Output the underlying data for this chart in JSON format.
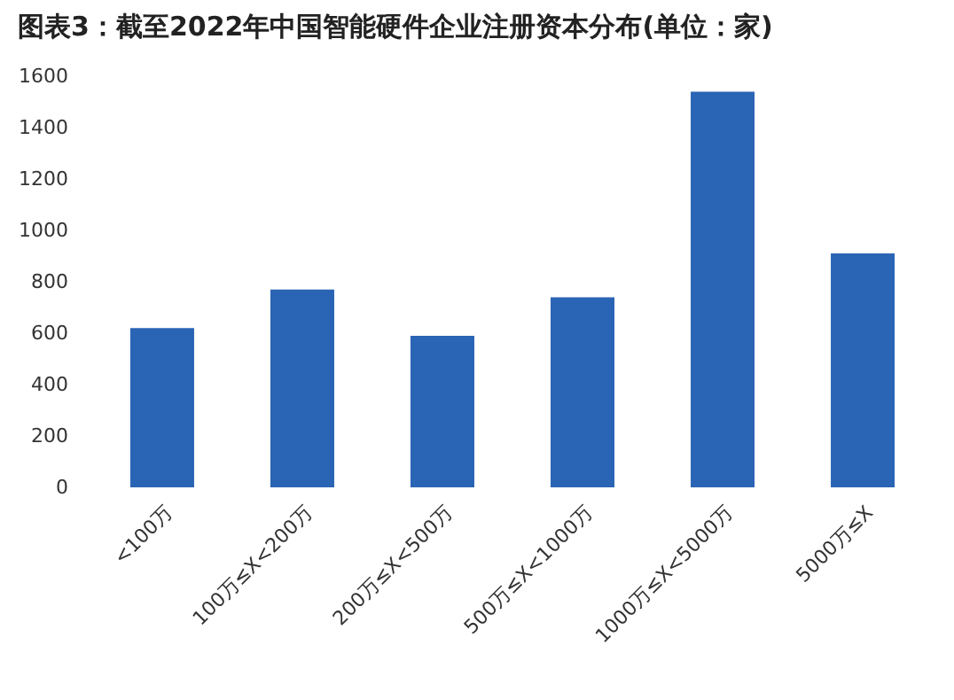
{
  "chart_data": {
    "type": "bar",
    "title": "图表3：截至2022年中国智能硬件企业注册资本分布(单位：家)",
    "categories": [
      "<100万",
      "100万≤X<200万",
      "200万≤X<500万",
      "500万≤X<1000万",
      "1000万≤X<5000万",
      "5000万≤X"
    ],
    "values": [
      620,
      770,
      590,
      740,
      1540,
      910
    ],
    "color": "#2a64b4",
    "ylim": [
      0,
      1600
    ],
    "yticks": [
      0,
      200,
      400,
      600,
      800,
      1000,
      1200,
      1400,
      1600
    ],
    "grid": false
  }
}
